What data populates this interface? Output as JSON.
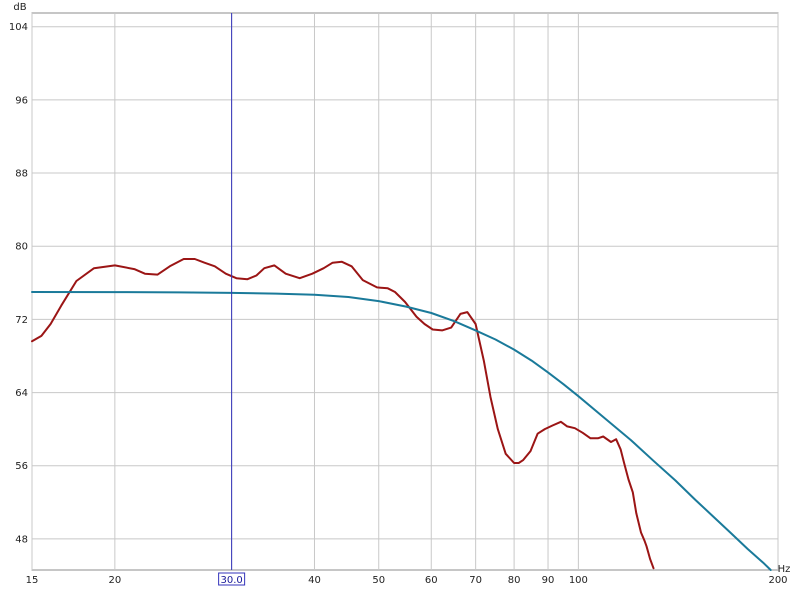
{
  "chart_data": {
    "type": "line",
    "title": "",
    "xlabel": "Hz",
    "ylabel": "dB",
    "x_scale": "log",
    "xlim": [
      15,
      200
    ],
    "ylim": [
      44.6,
      105.5
    ],
    "grid": true,
    "x_gridlines": [
      15,
      20,
      30,
      40,
      50,
      60,
      70,
      80,
      90,
      100,
      200
    ],
    "x_tick_labels": [
      "15",
      "20",
      "40",
      "50",
      "60",
      "70",
      "80",
      "90",
      "100",
      "200"
    ],
    "y_ticks": [
      48,
      56,
      64,
      72,
      80,
      88,
      96,
      104
    ],
    "y_tick_labels": [
      "48",
      "56",
      "64",
      "72",
      "80",
      "88",
      "96",
      "104"
    ],
    "cursor": {
      "x": 30.0,
      "label": "30.0",
      "color": "#3333bb"
    },
    "series": [
      {
        "color": "#9b1515",
        "x": [
          15,
          15.5,
          16,
          16.6,
          17.5,
          18.6,
          20,
          21.4,
          22.2,
          23.2,
          24.2,
          25.4,
          26.4,
          27.3,
          28.3,
          29.4,
          30.5,
          31.7,
          32.7,
          33.6,
          34.8,
          36.2,
          38.0,
          39.7,
          41.3,
          42.6,
          44.0,
          45.5,
          47.3,
          49.7,
          51.6,
          52.9,
          54.8,
          57.0,
          58.6,
          60.3,
          62.3,
          64.3,
          66.4,
          68.0,
          70.0,
          72.0,
          73.7,
          75.6,
          77.7,
          80.0,
          81.3,
          82.5,
          84.7,
          86.8,
          89.0,
          91.4,
          94.1,
          96.2,
          98.8,
          101.5,
          104.3,
          107.0,
          109.0,
          112.0,
          114.0,
          115.8,
          117.2,
          119.0,
          120.8,
          122.3,
          124.3,
          125.8,
          126.7,
          128.3,
          129.8
        ],
        "y": [
          69.6,
          70.2,
          71.5,
          73.5,
          76.2,
          77.6,
          77.9,
          77.5,
          77.0,
          76.9,
          77.8,
          78.6,
          78.6,
          78.2,
          77.8,
          77.0,
          76.5,
          76.4,
          76.8,
          77.6,
          77.9,
          77.0,
          76.5,
          77.0,
          77.6,
          78.2,
          78.3,
          77.8,
          76.3,
          75.5,
          75.4,
          75.0,
          73.9,
          72.3,
          71.5,
          70.9,
          70.8,
          71.1,
          72.6,
          72.8,
          71.5,
          67.5,
          63.5,
          60.0,
          57.3,
          56.3,
          56.3,
          56.6,
          57.6,
          59.5,
          60.0,
          60.4,
          60.8,
          60.3,
          60.1,
          59.6,
          59.0,
          59.0,
          59.2,
          58.6,
          58.9,
          57.8,
          56.3,
          54.5,
          53.1,
          50.8,
          48.7,
          47.8,
          47.2,
          45.8,
          44.8
        ]
      },
      {
        "color": "#1a7a9a",
        "x": [
          15,
          20,
          25,
          30,
          35,
          40,
          45,
          50,
          55,
          60,
          65,
          70,
          75,
          80,
          85,
          90,
          95,
          100,
          110,
          120,
          130,
          140,
          150,
          160,
          170,
          180,
          190,
          195
        ],
        "y": [
          75.0,
          74.98,
          74.95,
          74.9,
          74.82,
          74.7,
          74.45,
          74.0,
          73.4,
          72.7,
          71.8,
          70.8,
          69.8,
          68.7,
          67.5,
          66.2,
          64.9,
          63.6,
          61.1,
          58.8,
          56.5,
          54.4,
          52.3,
          50.4,
          48.6,
          46.9,
          45.4,
          44.6
        ]
      }
    ]
  }
}
